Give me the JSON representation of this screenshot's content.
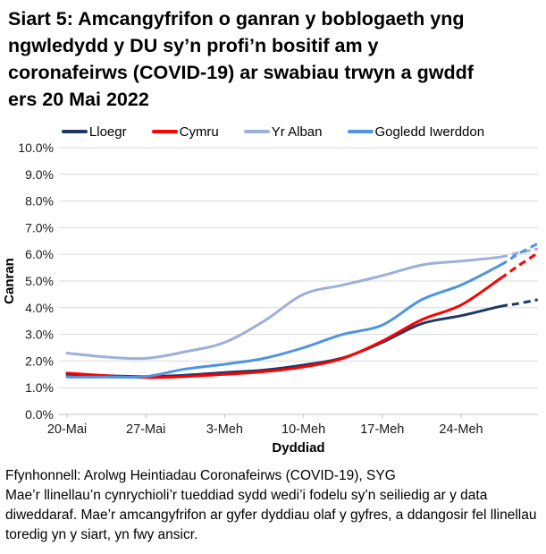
{
  "title_lines": [
    "Siart 5: Amcangyfrifon o ganran y boblogaeth yng",
    "ngwledydd y DU sy’n profi’n bositif am y",
    "coronafeirws (COVID-19) ar swabiau trwyn a gwddf",
    "ers 20 Mai 2022"
  ],
  "chart_data": {
    "type": "line",
    "title": "Siart 5: Amcangyfrifon o ganran y boblogaeth yng ngwledydd y DU sy’n profi’n bositif am y coronafeirws (COVID-19) ar swabiau trwyn a gwddf ers 20 Mai 2022",
    "xlabel": "Dyddiad",
    "ylabel": "Canran",
    "ylim": [
      0,
      10
    ],
    "grid": "horizontal",
    "legend_position": "top",
    "x_unit": "dyddiau ers 20 Mai 2022",
    "x": [
      0,
      3.5,
      7,
      10.5,
      14,
      17.5,
      21,
      24.5,
      28,
      31.5,
      35,
      38.5,
      40,
      41.8
    ],
    "dashed_from_day": 38.5,
    "dashed_note": "dashed tail = less certain estimates for final days",
    "x_ticks": [
      {
        "day": 0,
        "label": "20-Mai"
      },
      {
        "day": 7,
        "label": "27-Mai"
      },
      {
        "day": 14,
        "label": "3-Meh"
      },
      {
        "day": 21,
        "label": "10-Meh"
      },
      {
        "day": 28,
        "label": "17-Meh"
      },
      {
        "day": 35,
        "label": "24-Meh"
      }
    ],
    "y_tick_labels": [
      "0.0%",
      "1.0%",
      "2.0%",
      "3.0%",
      "4.0%",
      "5.0%",
      "6.0%",
      "7.0%",
      "8.0%",
      "9.0%",
      "10.0%"
    ],
    "series": [
      {
        "name": "Lloegr",
        "color": "#1f3864",
        "values": [
          1.5,
          1.45,
          1.42,
          1.47,
          1.57,
          1.66,
          1.85,
          2.12,
          2.7,
          3.4,
          3.7,
          4.05,
          4.15,
          4.3
        ]
      },
      {
        "name": "Cymru",
        "color": "#fe0000",
        "values": [
          1.55,
          1.45,
          1.38,
          1.42,
          1.5,
          1.6,
          1.78,
          2.1,
          2.75,
          3.55,
          4.1,
          5.1,
          5.55,
          6.05
        ]
      },
      {
        "name": "Yr Alban",
        "color": "#9cb0d9",
        "values": [
          2.3,
          2.15,
          2.1,
          2.35,
          2.7,
          3.5,
          4.5,
          4.85,
          5.2,
          5.6,
          5.75,
          5.9,
          6.05,
          6.2
        ]
      },
      {
        "name": "Gogledd Iwerddon",
        "color": "#4f94e0",
        "values": [
          1.4,
          1.4,
          1.42,
          1.7,
          1.88,
          2.1,
          2.5,
          3.0,
          3.35,
          4.3,
          4.85,
          5.6,
          6.0,
          6.4
        ]
      }
    ],
    "colors": {
      "gridline": "#d9d9d9",
      "axis_line": "#bfbfbf",
      "tick_text": "#1a1a1a"
    }
  },
  "footer": {
    "source": "Ffynhonnell: Arolwg Heintiadau Coronafeirws (COVID-19), SYG",
    "note_lines": [
      "Mae’r llinellau’n cynrychioli’r tueddiad sydd wedi’i fodelu sy’n seiliedig ar y data",
      "diweddaraf. Mae’r amcangyfrifon ar gyfer dyddiau olaf y gyfres, a ddangosir fel llinellau",
      "toredig yn y siart, yn fwy ansicr."
    ]
  }
}
